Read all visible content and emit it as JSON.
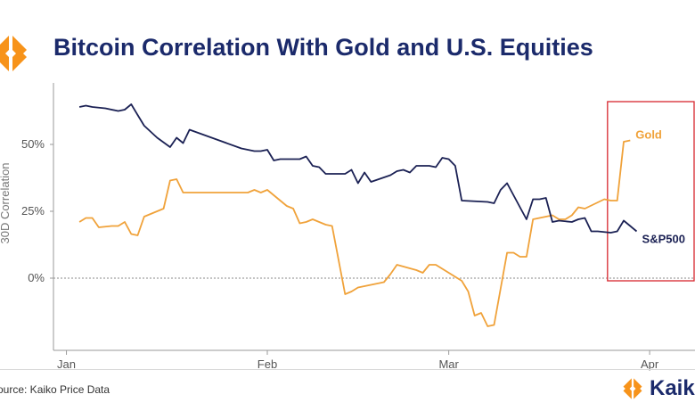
{
  "header": {
    "title": "Bitcoin Correlation With Gold and U.S. Equities"
  },
  "footer": {
    "source": "ource: Kaiko Price Data",
    "brand": "Kaik"
  },
  "colors": {
    "title": "#1b2a6b",
    "gold": "#f0a23a",
    "sp500": "#1b2154",
    "highlight_box": "#d7262e",
    "logo_orange": "#f7931a"
  },
  "chart_data": {
    "type": "line",
    "ylabel": "30D Correlation",
    "xlabel": "",
    "ylim": [
      -27,
      73
    ],
    "y_ticks": [
      {
        "value": 0,
        "label": "0%"
      },
      {
        "value": 25,
        "label": "25%"
      },
      {
        "value": 50,
        "label": "50%"
      }
    ],
    "x_ticks": [
      {
        "value": 1,
        "label": "Jan"
      },
      {
        "value": 32,
        "label": "Feb"
      },
      {
        "value": 60,
        "label": "Mar"
      },
      {
        "value": 91,
        "label": "Apr"
      }
    ],
    "zero_line": "dotted",
    "series": [
      {
        "name": "Gold",
        "color": "#f0a23a",
        "points": [
          [
            3,
            21
          ],
          [
            4,
            22.5
          ],
          [
            5,
            22.5
          ],
          [
            6,
            19
          ],
          [
            8,
            19.5
          ],
          [
            9,
            19.5
          ],
          [
            10,
            21
          ],
          [
            11,
            16.5
          ],
          [
            12,
            16
          ],
          [
            13,
            23
          ],
          [
            16,
            26
          ],
          [
            17,
            36.5
          ],
          [
            18,
            37
          ],
          [
            19,
            32
          ],
          [
            29,
            32
          ],
          [
            30,
            33
          ],
          [
            31,
            32
          ],
          [
            32,
            33
          ],
          [
            35,
            27
          ],
          [
            36,
            26
          ],
          [
            37,
            20.5
          ],
          [
            38,
            21
          ],
          [
            39,
            22
          ],
          [
            41,
            20
          ],
          [
            42,
            19.5
          ],
          [
            44,
            -6
          ],
          [
            45,
            -5
          ],
          [
            46,
            -3.5
          ],
          [
            50,
            -1.5
          ],
          [
            51,
            1.5
          ],
          [
            52,
            5
          ],
          [
            55,
            3
          ],
          [
            56,
            2
          ],
          [
            57,
            5
          ],
          [
            58,
            5
          ],
          [
            62,
            -1
          ],
          [
            63,
            -5
          ],
          [
            64,
            -14
          ],
          [
            65,
            -13
          ],
          [
            66,
            -18
          ],
          [
            67,
            -17.5
          ],
          [
            68,
            -4
          ],
          [
            69,
            9.5
          ],
          [
            70,
            9.5
          ],
          [
            71,
            8
          ],
          [
            72,
            8
          ],
          [
            73,
            22
          ],
          [
            76,
            23.5
          ],
          [
            77,
            22
          ],
          [
            78,
            22
          ],
          [
            79,
            23.5
          ],
          [
            80,
            26.5
          ],
          [
            81,
            26
          ],
          [
            84,
            29.5
          ],
          [
            85,
            29
          ],
          [
            86,
            29
          ],
          [
            87,
            51
          ],
          [
            88,
            51.5
          ]
        ]
      },
      {
        "name": "S&P500",
        "color": "#1b2154",
        "points": [
          [
            3,
            64
          ],
          [
            4,
            64.5
          ],
          [
            5,
            64
          ],
          [
            7,
            63.5
          ],
          [
            9,
            62.5
          ],
          [
            10,
            63
          ],
          [
            11,
            65
          ],
          [
            12,
            61
          ],
          [
            13,
            57
          ],
          [
            15,
            52.5
          ],
          [
            17,
            49
          ],
          [
            18,
            52.5
          ],
          [
            19,
            50.5
          ],
          [
            20,
            55.5
          ],
          [
            24,
            52
          ],
          [
            28,
            48.5
          ],
          [
            30,
            47.5
          ],
          [
            31,
            47.5
          ],
          [
            32,
            48
          ],
          [
            33,
            44
          ],
          [
            34,
            44.5
          ],
          [
            37,
            44.5
          ],
          [
            38,
            45.5
          ],
          [
            39,
            42
          ],
          [
            40,
            41.5
          ],
          [
            41,
            39
          ],
          [
            43,
            39
          ],
          [
            44,
            39
          ],
          [
            45,
            40.5
          ],
          [
            46,
            35.5
          ],
          [
            47,
            39.5
          ],
          [
            48,
            36
          ],
          [
            51,
            38.5
          ],
          [
            52,
            40
          ],
          [
            53,
            40.5
          ],
          [
            54,
            39.5
          ],
          [
            55,
            42
          ],
          [
            57,
            42
          ],
          [
            58,
            41.5
          ],
          [
            59,
            45
          ],
          [
            60,
            44.5
          ],
          [
            61,
            42
          ],
          [
            62,
            29
          ],
          [
            66,
            28.5
          ],
          [
            67,
            28
          ],
          [
            68,
            33
          ],
          [
            69,
            35.5
          ],
          [
            71,
            26.5
          ],
          [
            72,
            22
          ],
          [
            73,
            29.5
          ],
          [
            74,
            29.5
          ],
          [
            75,
            30
          ],
          [
            76,
            21
          ],
          [
            77,
            21.5
          ],
          [
            79,
            21
          ],
          [
            80,
            22
          ],
          [
            81,
            22.5
          ],
          [
            82,
            17.5
          ],
          [
            83,
            17.5
          ],
          [
            85,
            17
          ],
          [
            86,
            17.5
          ],
          [
            87,
            21.5
          ],
          [
            88,
            19.5
          ],
          [
            89,
            17.5
          ]
        ]
      }
    ],
    "annotations": [
      {
        "text": "Gold",
        "series": "Gold"
      },
      {
        "text": "S&P500",
        "series": "S&P500"
      }
    ],
    "highlight_box": {
      "x_range": [
        84.5,
        100
      ],
      "y_range": [
        -1,
        66
      ]
    }
  }
}
